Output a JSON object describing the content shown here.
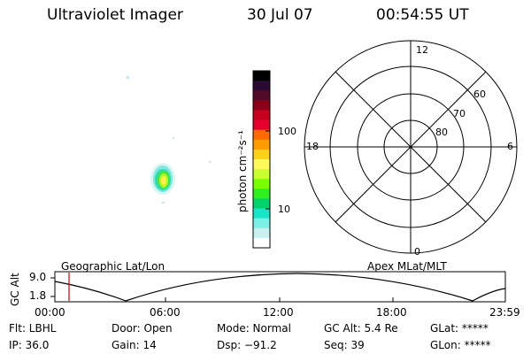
{
  "header": {
    "title": "Ultraviolet Imager",
    "date": "30 Jul 07",
    "time": "00:54:55 UT"
  },
  "colorbar": {
    "unit_label": "photon cm⁻²s⁻¹",
    "ticks": [
      "100",
      "10"
    ],
    "colors": [
      "#000000",
      "#2a0a33",
      "#520a28",
      "#8a0019",
      "#c8001e",
      "#e6002e",
      "#ff6a00",
      "#ff9a00",
      "#ffd21a",
      "#fffa5a",
      "#c8ff2d",
      "#78ff00",
      "#2ff01e",
      "#00d26e",
      "#19e6c8",
      "#7af0e6",
      "#c8f0f0",
      "#ffffff"
    ]
  },
  "polar_plot": {
    "top_label": "12",
    "bottom_label": "0",
    "left_label": "18",
    "right_label": "6",
    "ring_labels": [
      "60",
      "70",
      "80"
    ]
  },
  "timeline": {
    "axis_label": "GC Alt",
    "y_ticks": [
      "9.0",
      "1.8"
    ],
    "left_caption": "Geographic Lat/Lon",
    "right_caption": "Apex MLat/MLT",
    "x_ticks": [
      "00:00",
      "06:00",
      "12:00",
      "18:00",
      "23:59"
    ],
    "current_marker_color": "#cc0000"
  },
  "info": {
    "row1": [
      "Flt: LBHL",
      "Door: Open",
      "Mode: Normal",
      "GC Alt: 5.4 Re",
      "GLat: *****"
    ],
    "row2": [
      "IP: 36.0",
      "Gain: 14",
      "Dsp:  −91.2",
      "Seq: 39",
      "GLon: *****"
    ]
  }
}
